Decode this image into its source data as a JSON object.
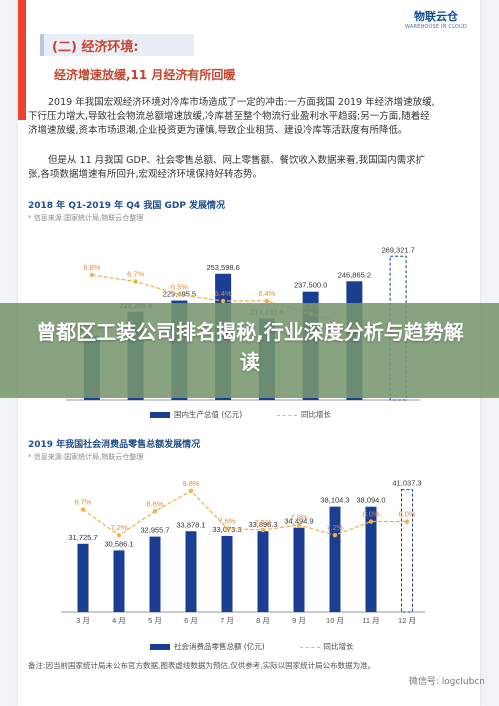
{
  "logo": {
    "name": "物联云仓",
    "sub": "WAREHOUSE IN CLOUD"
  },
  "section_title": "(二) 经济环境:",
  "subheading": "经济增速放缓,11 月经济有所回暖",
  "paragraph1": "2019 年我国宏观经济环境对冷库市场造成了一定的冲击:一方面我国 2019 年经济增速放缓,下行压力增大,导致社会物流总额增速放缓,冷库甚至整个物流行业盈利水平趋弱;另一方面,随着经济增速放缓,资本市场退潮,企业投资更为谨慎,导致企业租赁、建设冷库等活跃度有所降低。",
  "paragraph2": "但是从 11 月我国 GDP、社会零售总额、网上零售额、餐饮收入数据来看,我国国内需求扩张,各项数据增速有所回升,宏观经济环境保持好转态势。",
  "banner_text": "曾都区工装公司排名揭秘,行业深度分析与趋势解读",
  "note": "备注:因当前国家统计局未公布官方数据,图表虚线数据为预估,仅供参考,实际以国家统计局公布数据为准。",
  "watermark": "微信号: logclubcn",
  "chart_data": [
    {
      "type": "bar",
      "title": "2018 年 Q1-2019 年 Q4 我国 GDP 发展情况",
      "source": "* 信息来源:国家统计局,物联云仓整理",
      "categories": [
        "",
        "",
        "",
        "",
        "",
        "",
        "",
        ""
      ],
      "series": [
        {
          "name": "国内生产总值 (亿元)",
          "values": [
            197920.0,
            219295.4,
            229495.5,
            253598.6,
            213432.8,
            237500.0,
            246865.2,
            269321.7
          ]
        },
        {
          "name": "同比增长",
          "values": [
            6.8,
            6.7,
            6.5,
            6.4,
            6.4,
            6.2,
            6.0,
            6.0
          ]
        }
      ],
      "bar_labels": [
        "197,920.0",
        "219,295.4",
        "229,495.5",
        "253,598.6",
        "213,432.8",
        "237,500.0",
        "246,865.2",
        "269,321.7"
      ],
      "line_labels": [
        "6.8%",
        "6.7%",
        "6.5%",
        "6.4%",
        "6.4%",
        "6.2%",
        "",
        ""
      ],
      "estimated_last": true,
      "colors": {
        "bar": "#1a3f92",
        "line": "#f2b04a"
      }
    },
    {
      "type": "bar",
      "title": "2019 年我国社会消费品零售总额发展情况",
      "source": "* 信息来源:国家统计局,物联云仓整理",
      "categories": [
        "3 月",
        "4 月",
        "5 月",
        "6 月",
        "7 月",
        "8 月",
        "9 月",
        "10 月",
        "11 月",
        "12 月"
      ],
      "series": [
        {
          "name": "社会消费品零售总额 (亿元)",
          "values": [
            31725.7,
            30586.1,
            32955.7,
            33878.1,
            33073.3,
            33896.3,
            34494.9,
            38104.3,
            38094.0,
            41037.3
          ]
        },
        {
          "name": "同比增长",
          "values": [
            8.7,
            7.2,
            8.6,
            9.8,
            7.6,
            7.5,
            7.8,
            7.2,
            8.0,
            8.0
          ]
        }
      ],
      "bar_labels": [
        "31,725.7",
        "30,586.1",
        "32,955.7",
        "33,878.1",
        "33,073.3",
        "33,896.3",
        "34,494.9",
        "38,104.3",
        "38,094.0",
        "41,037.3"
      ],
      "line_labels": [
        "8.7%",
        "7.2%",
        "8.6%",
        "9.8%",
        "7.6%",
        "7.5%",
        "7.8%",
        "7.2%",
        "8.0%",
        "8.0%"
      ],
      "estimated_last": true,
      "colors": {
        "bar": "#1a3f92",
        "line": "#f2b04a"
      }
    }
  ]
}
